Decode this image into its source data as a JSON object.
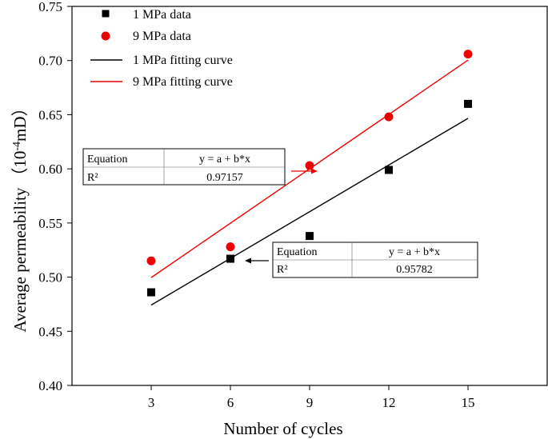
{
  "chart_data": {
    "type": "scatter",
    "title": "",
    "xlabel": "Number of cycles",
    "ylabel_main": "Average permeability",
    "ylabel_unit_pre": "（10",
    "ylabel_unit_sup": "-4",
    "ylabel_unit_post": "mD）",
    "xlim": [
      0,
      18
    ],
    "ylim": [
      0.4,
      0.75
    ],
    "xticks": [
      3,
      6,
      9,
      12,
      15
    ],
    "yticks": [
      0.4,
      0.45,
      0.5,
      0.55,
      0.6,
      0.65,
      0.7,
      0.75
    ],
    "ytick_labels": [
      "0.40",
      "0.45",
      "0.50",
      "0.55",
      "0.60",
      "0.65",
      "0.70",
      "0.75"
    ],
    "grid": false,
    "legend_position": "top-left",
    "series": [
      {
        "name": "1 MPa data",
        "kind": "marker",
        "marker": "square",
        "color": "#000000",
        "x": [
          3,
          6,
          9,
          12,
          15
        ],
        "y": [
          0.486,
          0.517,
          0.538,
          0.599,
          0.66
        ]
      },
      {
        "name": "9 MPa data",
        "kind": "marker",
        "marker": "circle",
        "color": "#ee0000",
        "x": [
          3,
          6,
          9,
          12,
          15
        ],
        "y": [
          0.515,
          0.528,
          0.603,
          0.648,
          0.706
        ]
      },
      {
        "name": "1 MPa  fitting curve",
        "kind": "line",
        "color": "#000000",
        "x": [
          3,
          15
        ],
        "y": [
          0.4742,
          0.6466
        ]
      },
      {
        "name": "9 MPa  fitting curve",
        "kind": "line",
        "color": "#ee0000",
        "x": [
          3,
          15
        ],
        "y": [
          0.4996,
          0.7004
        ]
      }
    ],
    "fit_tables": [
      {
        "series": "9 MPa  fitting curve",
        "row1_label": "Equation",
        "row1_value": "y = a + b*x",
        "row2_label": "R²",
        "row2_value": "0.97157",
        "arrow_color": "#ee0000"
      },
      {
        "series": "1 MPa  fitting curve",
        "row1_label": "Equation",
        "row1_value": "y = a + b*x",
        "row2_label": "R²",
        "row2_value": "0.95782",
        "arrow_color": "#000000"
      }
    ]
  }
}
